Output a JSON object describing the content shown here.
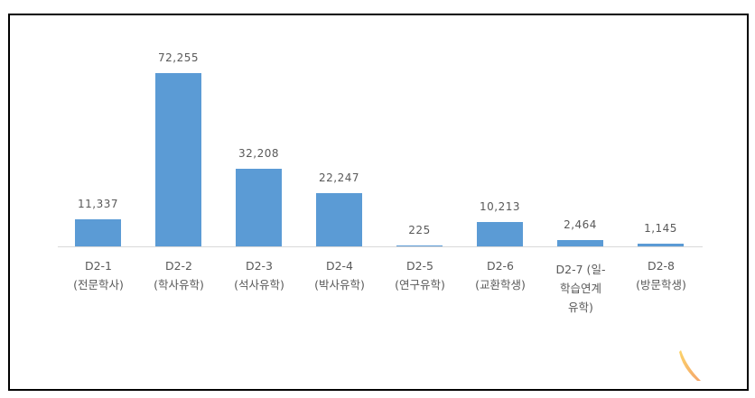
{
  "chart_data": {
    "type": "bar",
    "title": "",
    "xlabel": "",
    "ylabel": "",
    "categories": [
      "D2-1 (전문학사)",
      "D2-2 (학사유학)",
      "D2-3 (석사유학)",
      "D2-4 (박사유학)",
      "D2-5 (연구유학)",
      "D2-6 (교환학생)",
      "D2-7 (일-학습연계 유학)",
      "D2-8 (방문학생)"
    ],
    "values": [
      11337,
      72255,
      32208,
      22247,
      225,
      10213,
      2464,
      1145
    ],
    "value_labels": [
      "11,337",
      "72,255",
      "32,208",
      "22,247",
      "225",
      "10,213",
      "2,464",
      "1,145"
    ],
    "category_lines": [
      [
        "D2-1",
        "(전문학사)"
      ],
      [
        "D2-2",
        "(학사유학)"
      ],
      [
        "D2-3",
        "(석사유학)"
      ],
      [
        "D2-4",
        "(박사유학)"
      ],
      [
        "D2-5",
        "(연구유학)"
      ],
      [
        "D2-6",
        "(교환학생)"
      ],
      [
        "D2-7 (일-",
        "학습연계",
        "유학)"
      ],
      [
        "D2-8",
        "(방문학생)"
      ]
    ],
    "bar_color": "#5b9bd5",
    "grid": false,
    "legend": "none",
    "y_axis_visible": false
  }
}
